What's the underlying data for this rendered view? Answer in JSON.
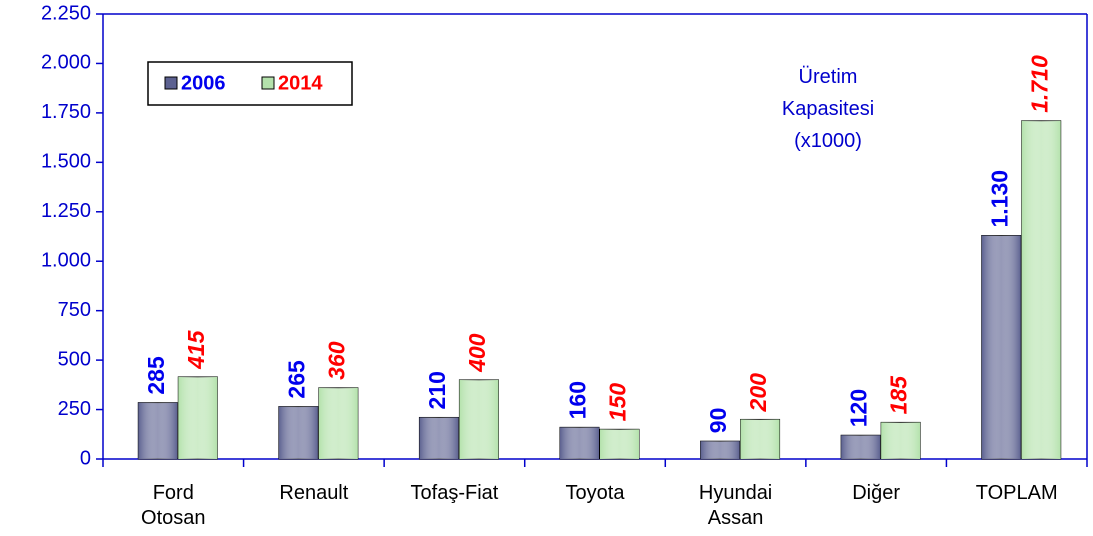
{
  "chart_data": {
    "type": "bar",
    "categories": [
      "Ford Otosan",
      "Renault",
      "Tofaş-Fiat",
      "Toyota",
      "Hyundai Assan",
      "Diğer",
      "TOPLAM"
    ],
    "series": [
      {
        "name": "2006",
        "color": "#5c6190",
        "label_color": "#0000ee",
        "values": [
          285,
          265,
          210,
          160,
          90,
          120,
          1130
        ],
        "value_labels": [
          "285",
          "265",
          "210",
          "160",
          "90",
          "120",
          "1.130"
        ]
      },
      {
        "name": "2014",
        "color": "#b4e2ac",
        "label_color": "#ff0000",
        "values": [
          415,
          360,
          400,
          150,
          200,
          185,
          1710
        ],
        "value_labels": [
          "415",
          "360",
          "400",
          "150",
          "200",
          "185",
          "1.710"
        ]
      }
    ],
    "annotation": "Üretim Kapasitesi (x1000)",
    "ylim": [
      0,
      2250
    ],
    "yticks": [
      0,
      250,
      500,
      750,
      {
        "value": 1000,
        "label": "1.000"
      },
      {
        "value": 1250,
        "label": "1.250"
      },
      {
        "value": 1500,
        "label": "1.500"
      },
      {
        "value": 1750,
        "label": "1.750"
      },
      {
        "value": 2000,
        "label": "2.000"
      },
      {
        "value": 2250,
        "label": "2.250"
      }
    ],
    "axis_color": "#0000cc"
  }
}
